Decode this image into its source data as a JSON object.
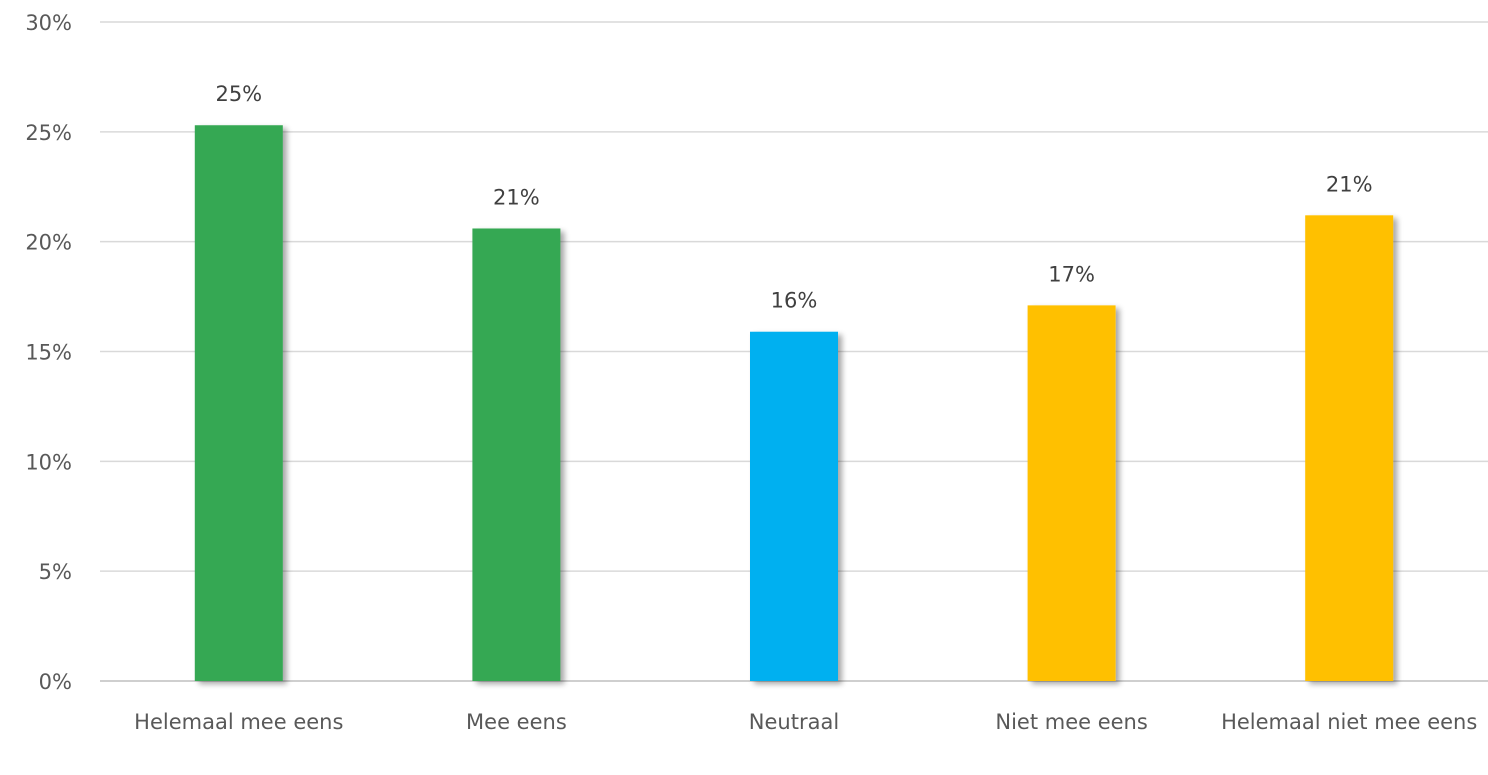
{
  "chart_data": {
    "type": "bar",
    "categories": [
      "Helemaal mee eens",
      "Mee eens",
      "Neutraal",
      "Niet mee eens",
      "Helemaal niet mee eens"
    ],
    "values": [
      25.3,
      20.6,
      15.9,
      17.1,
      21.2
    ],
    "data_labels": [
      "25%",
      "21%",
      "16%",
      "17%",
      "21%"
    ],
    "bar_colors": [
      "#34a853",
      "#34a853",
      "#00b0f0",
      "#ffc000",
      "#ffc000"
    ],
    "ylim": [
      0,
      30
    ],
    "y_ticks": [
      0,
      5,
      10,
      15,
      20,
      25,
      30
    ],
    "y_tick_labels": [
      "0%",
      "5%",
      "10%",
      "15%",
      "20%",
      "25%",
      "30%"
    ],
    "title": "",
    "xlabel": "",
    "ylabel": "",
    "grid": true,
    "legend": "none"
  }
}
